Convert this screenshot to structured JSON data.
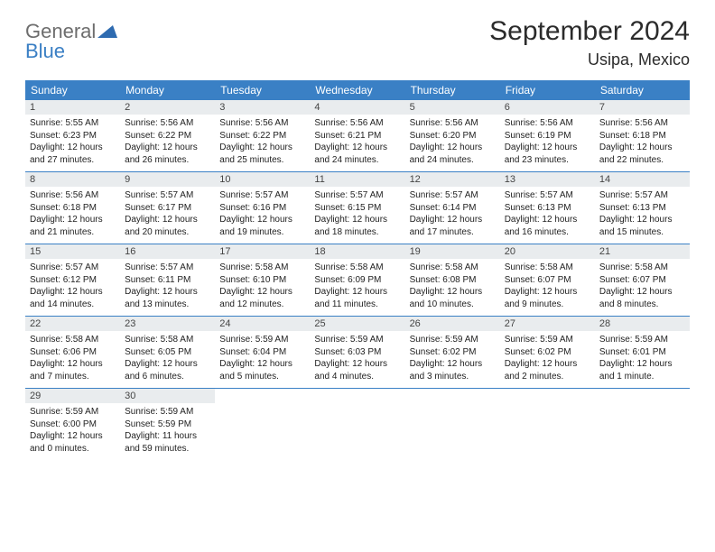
{
  "brand": {
    "part1": "General",
    "part2": "Blue"
  },
  "title": "September 2024",
  "location": "Usipa, Mexico",
  "colors": {
    "header_bg": "#3a80c5",
    "header_text": "#ffffff",
    "daynum_bg": "#e9ecee",
    "border": "#3a80c5",
    "logo_gray": "#6d6d6d",
    "logo_blue": "#3a7fc4"
  },
  "fonts": {
    "title_size": 30,
    "location_size": 18,
    "header_size": 12,
    "daynum_size": 11,
    "body_size": 10
  },
  "day_names": [
    "Sunday",
    "Monday",
    "Tuesday",
    "Wednesday",
    "Thursday",
    "Friday",
    "Saturday"
  ],
  "weeks": [
    [
      {
        "n": "1",
        "sr": "5:55 AM",
        "ss": "6:23 PM",
        "dl1": "Daylight: 12 hours",
        "dl2": "and 27 minutes."
      },
      {
        "n": "2",
        "sr": "5:56 AM",
        "ss": "6:22 PM",
        "dl1": "Daylight: 12 hours",
        "dl2": "and 26 minutes."
      },
      {
        "n": "3",
        "sr": "5:56 AM",
        "ss": "6:22 PM",
        "dl1": "Daylight: 12 hours",
        "dl2": "and 25 minutes."
      },
      {
        "n": "4",
        "sr": "5:56 AM",
        "ss": "6:21 PM",
        "dl1": "Daylight: 12 hours",
        "dl2": "and 24 minutes."
      },
      {
        "n": "5",
        "sr": "5:56 AM",
        "ss": "6:20 PM",
        "dl1": "Daylight: 12 hours",
        "dl2": "and 24 minutes."
      },
      {
        "n": "6",
        "sr": "5:56 AM",
        "ss": "6:19 PM",
        "dl1": "Daylight: 12 hours",
        "dl2": "and 23 minutes."
      },
      {
        "n": "7",
        "sr": "5:56 AM",
        "ss": "6:18 PM",
        "dl1": "Daylight: 12 hours",
        "dl2": "and 22 minutes."
      }
    ],
    [
      {
        "n": "8",
        "sr": "5:56 AM",
        "ss": "6:18 PM",
        "dl1": "Daylight: 12 hours",
        "dl2": "and 21 minutes."
      },
      {
        "n": "9",
        "sr": "5:57 AM",
        "ss": "6:17 PM",
        "dl1": "Daylight: 12 hours",
        "dl2": "and 20 minutes."
      },
      {
        "n": "10",
        "sr": "5:57 AM",
        "ss": "6:16 PM",
        "dl1": "Daylight: 12 hours",
        "dl2": "and 19 minutes."
      },
      {
        "n": "11",
        "sr": "5:57 AM",
        "ss": "6:15 PM",
        "dl1": "Daylight: 12 hours",
        "dl2": "and 18 minutes."
      },
      {
        "n": "12",
        "sr": "5:57 AM",
        "ss": "6:14 PM",
        "dl1": "Daylight: 12 hours",
        "dl2": "and 17 minutes."
      },
      {
        "n": "13",
        "sr": "5:57 AM",
        "ss": "6:13 PM",
        "dl1": "Daylight: 12 hours",
        "dl2": "and 16 minutes."
      },
      {
        "n": "14",
        "sr": "5:57 AM",
        "ss": "6:13 PM",
        "dl1": "Daylight: 12 hours",
        "dl2": "and 15 minutes."
      }
    ],
    [
      {
        "n": "15",
        "sr": "5:57 AM",
        "ss": "6:12 PM",
        "dl1": "Daylight: 12 hours",
        "dl2": "and 14 minutes."
      },
      {
        "n": "16",
        "sr": "5:57 AM",
        "ss": "6:11 PM",
        "dl1": "Daylight: 12 hours",
        "dl2": "and 13 minutes."
      },
      {
        "n": "17",
        "sr": "5:58 AM",
        "ss": "6:10 PM",
        "dl1": "Daylight: 12 hours",
        "dl2": "and 12 minutes."
      },
      {
        "n": "18",
        "sr": "5:58 AM",
        "ss": "6:09 PM",
        "dl1": "Daylight: 12 hours",
        "dl2": "and 11 minutes."
      },
      {
        "n": "19",
        "sr": "5:58 AM",
        "ss": "6:08 PM",
        "dl1": "Daylight: 12 hours",
        "dl2": "and 10 minutes."
      },
      {
        "n": "20",
        "sr": "5:58 AM",
        "ss": "6:07 PM",
        "dl1": "Daylight: 12 hours",
        "dl2": "and 9 minutes."
      },
      {
        "n": "21",
        "sr": "5:58 AM",
        "ss": "6:07 PM",
        "dl1": "Daylight: 12 hours",
        "dl2": "and 8 minutes."
      }
    ],
    [
      {
        "n": "22",
        "sr": "5:58 AM",
        "ss": "6:06 PM",
        "dl1": "Daylight: 12 hours",
        "dl2": "and 7 minutes."
      },
      {
        "n": "23",
        "sr": "5:58 AM",
        "ss": "6:05 PM",
        "dl1": "Daylight: 12 hours",
        "dl2": "and 6 minutes."
      },
      {
        "n": "24",
        "sr": "5:59 AM",
        "ss": "6:04 PM",
        "dl1": "Daylight: 12 hours",
        "dl2": "and 5 minutes."
      },
      {
        "n": "25",
        "sr": "5:59 AM",
        "ss": "6:03 PM",
        "dl1": "Daylight: 12 hours",
        "dl2": "and 4 minutes."
      },
      {
        "n": "26",
        "sr": "5:59 AM",
        "ss": "6:02 PM",
        "dl1": "Daylight: 12 hours",
        "dl2": "and 3 minutes."
      },
      {
        "n": "27",
        "sr": "5:59 AM",
        "ss": "6:02 PM",
        "dl1": "Daylight: 12 hours",
        "dl2": "and 2 minutes."
      },
      {
        "n": "28",
        "sr": "5:59 AM",
        "ss": "6:01 PM",
        "dl1": "Daylight: 12 hours",
        "dl2": "and 1 minute."
      }
    ],
    [
      {
        "n": "29",
        "sr": "5:59 AM",
        "ss": "6:00 PM",
        "dl1": "Daylight: 12 hours",
        "dl2": "and 0 minutes."
      },
      {
        "n": "30",
        "sr": "5:59 AM",
        "ss": "5:59 PM",
        "dl1": "Daylight: 11 hours",
        "dl2": "and 59 minutes."
      },
      null,
      null,
      null,
      null,
      null
    ]
  ],
  "labels": {
    "sunrise_prefix": "Sunrise: ",
    "sunset_prefix": "Sunset: "
  }
}
